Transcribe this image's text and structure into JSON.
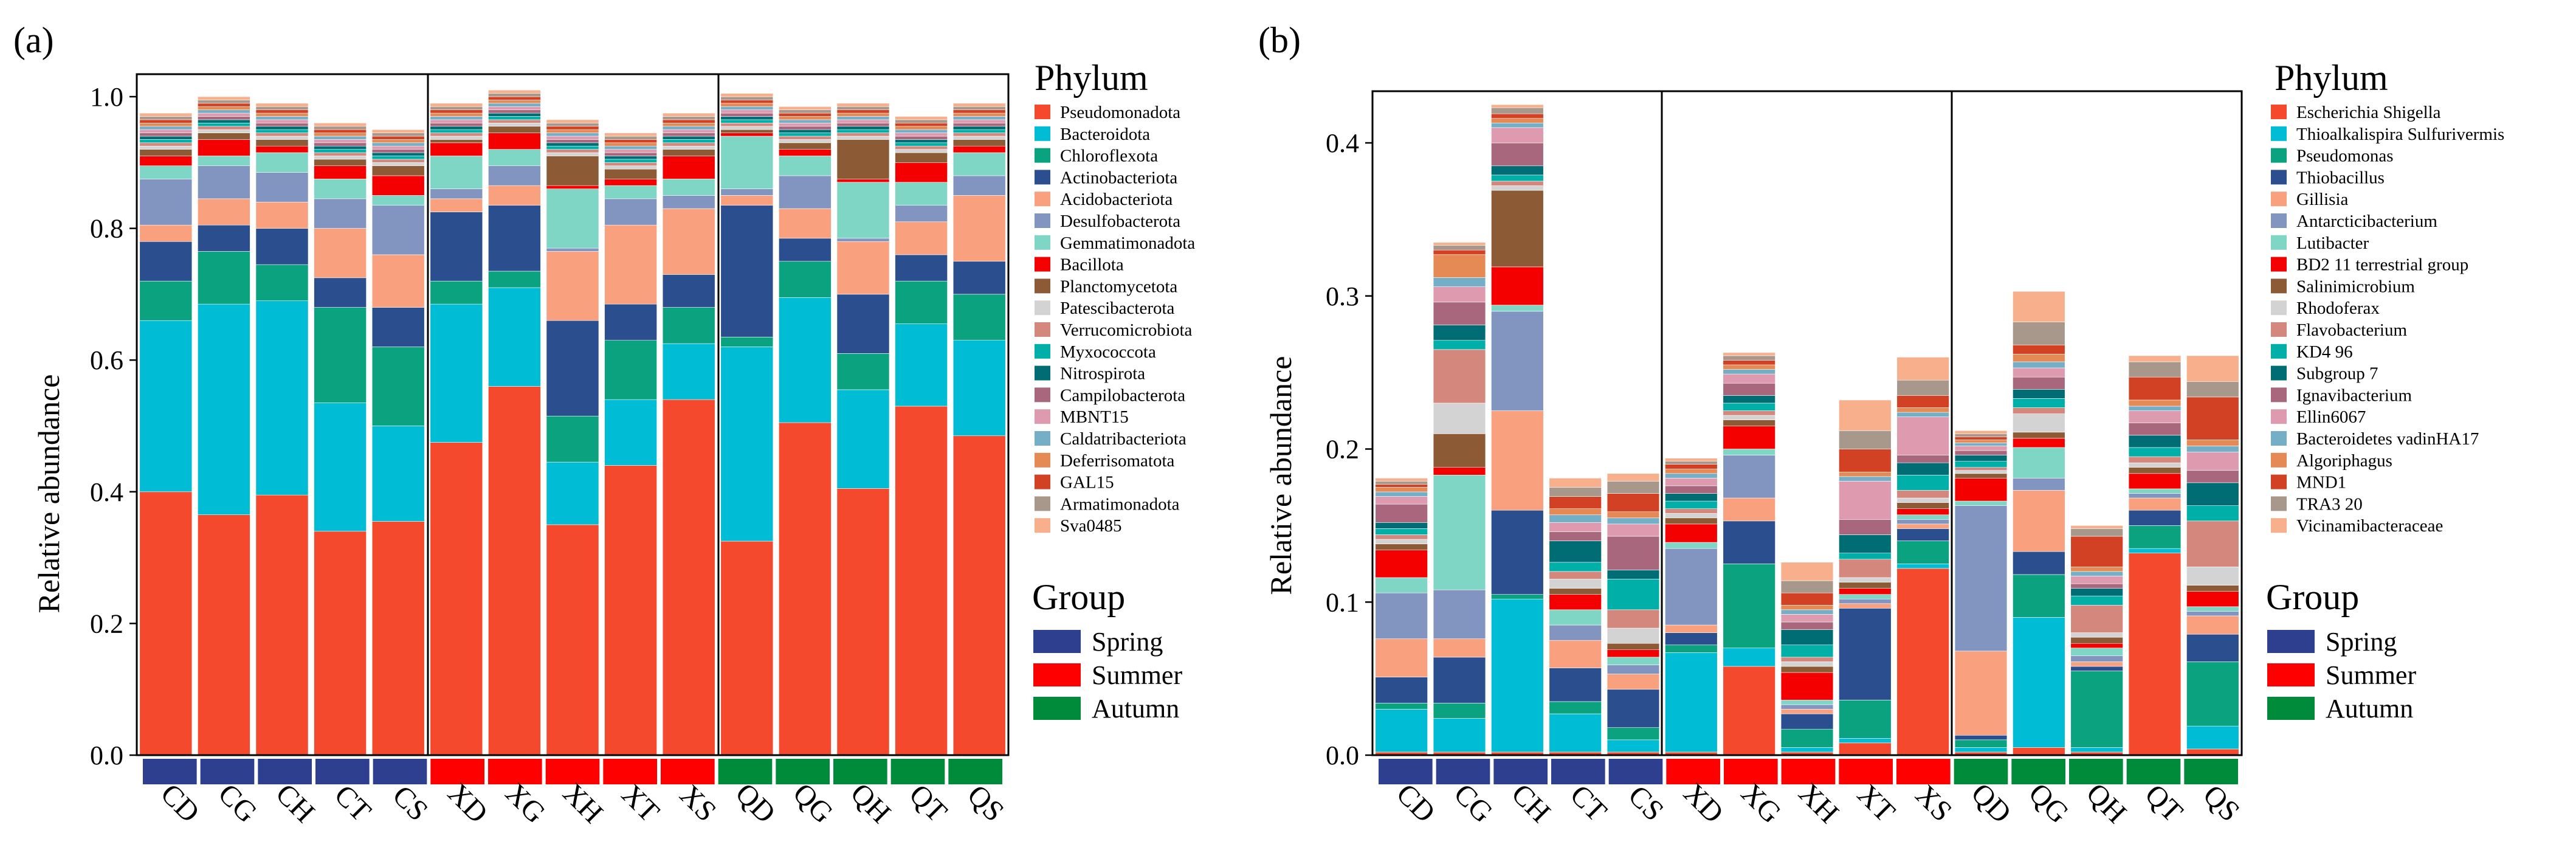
{
  "group_colors": {
    "Spring": "#2E3F8F",
    "Summer": "#FF0000",
    "Autumn": "#008B3A"
  },
  "group_legend": {
    "title": "Group",
    "items": [
      "Spring",
      "Summer",
      "Autumn"
    ]
  },
  "chart_data": [
    {
      "panel_label": "(a)",
      "type": "bar",
      "stacked": true,
      "title": "",
      "xlabel": "",
      "ylabel": "Relative abundance",
      "ylim": [
        0,
        1.0
      ],
      "yticks": [
        0.0,
        0.2,
        0.4,
        0.6,
        0.8,
        1.0
      ],
      "ytick_labels": [
        "0.0",
        "0.2",
        "0.4",
        "0.6",
        "0.8",
        "1.0"
      ],
      "categories": [
        "CD",
        "CG",
        "CH",
        "CT",
        "CS",
        "XD",
        "XG",
        "XH",
        "XT",
        "XS",
        "QD",
        "QG",
        "QH",
        "QT",
        "QS"
      ],
      "category_groups": [
        "Spring",
        "Spring",
        "Spring",
        "Spring",
        "Spring",
        "Summer",
        "Summer",
        "Summer",
        "Summer",
        "Summer",
        "Autumn",
        "Autumn",
        "Autumn",
        "Autumn",
        "Autumn"
      ],
      "legend_title": "Phylum",
      "series": [
        {
          "name": "Pseudomonadota",
          "color": "#F4492C",
          "values": [
            0.4,
            0.365,
            0.395,
            0.34,
            0.355,
            0.475,
            0.56,
            0.35,
            0.44,
            0.54,
            0.325,
            0.505,
            0.405,
            0.53,
            0.485
          ]
        },
        {
          "name": "Bacteroidota",
          "color": "#00BCD4",
          "values": [
            0.26,
            0.32,
            0.295,
            0.195,
            0.145,
            0.21,
            0.15,
            0.095,
            0.1,
            0.085,
            0.295,
            0.19,
            0.15,
            0.125,
            0.145
          ]
        },
        {
          "name": "Chloroflexota",
          "color": "#0BA37F",
          "values": [
            0.06,
            0.08,
            0.055,
            0.145,
            0.12,
            0.035,
            0.025,
            0.07,
            0.09,
            0.055,
            0.015,
            0.055,
            0.055,
            0.065,
            0.07
          ]
        },
        {
          "name": "Actinobacteriota",
          "color": "#2B4F8E",
          "values": [
            0.06,
            0.04,
            0.055,
            0.045,
            0.06,
            0.105,
            0.1,
            0.145,
            0.055,
            0.05,
            0.2,
            0.035,
            0.09,
            0.04,
            0.05
          ]
        },
        {
          "name": "Acidobacteriota",
          "color": "#F9A07F",
          "values": [
            0.025,
            0.04,
            0.04,
            0.075,
            0.08,
            0.02,
            0.03,
            0.105,
            0.12,
            0.1,
            0.015,
            0.045,
            0.08,
            0.05,
            0.1
          ]
        },
        {
          "name": "Desulfobacterota",
          "color": "#8295C1",
          "values": [
            0.07,
            0.05,
            0.045,
            0.045,
            0.075,
            0.015,
            0.03,
            0.005,
            0.04,
            0.02,
            0.01,
            0.05,
            0.005,
            0.025,
            0.03
          ]
        },
        {
          "name": "Gemmatimonadota",
          "color": "#7FD6C4",
          "values": [
            0.02,
            0.015,
            0.03,
            0.03,
            0.015,
            0.05,
            0.025,
            0.09,
            0.02,
            0.025,
            0.08,
            0.03,
            0.085,
            0.035,
            0.035
          ]
        },
        {
          "name": "Bacillota",
          "color": "#F40000",
          "values": [
            0.015,
            0.025,
            0.01,
            0.02,
            0.03,
            0.02,
            0.025,
            0.005,
            0.01,
            0.035,
            0.005,
            0.01,
            0.005,
            0.03,
            0.01
          ]
        },
        {
          "name": "Planctomycetota",
          "color": "#8C5A35",
          "values": [
            0.01,
            0.01,
            0.01,
            0.01,
            0.015,
            0.005,
            0.01,
            0.045,
            0.015,
            0.01,
            0.005,
            0.01,
            0.06,
            0.015,
            0.01
          ]
        },
        {
          "name": "Patescibacterota",
          "color": "#D3D3D3",
          "values": [
            0.005,
            0.005,
            0.005,
            0.005,
            0.005,
            0.005,
            0.005,
            0.005,
            0.005,
            0.005,
            0.005,
            0.005,
            0.005,
            0.005,
            0.005
          ]
        },
        {
          "name": "Verrucomicrobiota",
          "color": "#D4877C",
          "values": [
            0.005,
            0.005,
            0.005,
            0.005,
            0.005,
            0.005,
            0.005,
            0.005,
            0.005,
            0.005,
            0.005,
            0.005,
            0.005,
            0.005,
            0.005
          ]
        },
        {
          "name": "Myxococcota",
          "color": "#00AFA8",
          "values": [
            0.005,
            0.005,
            0.005,
            0.005,
            0.005,
            0.005,
            0.005,
            0.005,
            0.005,
            0.005,
            0.005,
            0.005,
            0.005,
            0.005,
            0.005
          ]
        },
        {
          "name": "Nitrospirota",
          "color": "#006D74",
          "values": [
            0.005,
            0.005,
            0.005,
            0.005,
            0.005,
            0.005,
            0.005,
            0.005,
            0.005,
            0.005,
            0.005,
            0.005,
            0.005,
            0.005,
            0.005
          ]
        },
        {
          "name": "Campilobacterota",
          "color": "#A8677D",
          "values": [
            0.005,
            0.005,
            0.005,
            0.005,
            0.005,
            0.005,
            0.005,
            0.005,
            0.005,
            0.005,
            0.005,
            0.005,
            0.005,
            0.005,
            0.005
          ]
        },
        {
          "name": "MBNT15",
          "color": "#DE9AAE",
          "values": [
            0.005,
            0.005,
            0.005,
            0.005,
            0.005,
            0.005,
            0.005,
            0.005,
            0.005,
            0.005,
            0.005,
            0.005,
            0.005,
            0.005,
            0.005
          ]
        },
        {
          "name": "Caldatribacteriota",
          "color": "#75AFC7",
          "values": [
            0.005,
            0.005,
            0.005,
            0.005,
            0.005,
            0.005,
            0.005,
            0.005,
            0.005,
            0.005,
            0.005,
            0.005,
            0.005,
            0.005,
            0.005
          ]
        },
        {
          "name": "Deferrisomatota",
          "color": "#E58A55",
          "values": [
            0.005,
            0.005,
            0.005,
            0.005,
            0.005,
            0.005,
            0.005,
            0.005,
            0.005,
            0.005,
            0.005,
            0.005,
            0.005,
            0.005,
            0.005
          ]
        },
        {
          "name": "GAL15",
          "color": "#D34124",
          "values": [
            0.005,
            0.005,
            0.005,
            0.005,
            0.005,
            0.005,
            0.005,
            0.005,
            0.005,
            0.005,
            0.005,
            0.005,
            0.005,
            0.005,
            0.005
          ]
        },
        {
          "name": "Armatimonadota",
          "color": "#A8988C",
          "values": [
            0.005,
            0.005,
            0.005,
            0.005,
            0.005,
            0.005,
            0.005,
            0.005,
            0.005,
            0.005,
            0.005,
            0.005,
            0.005,
            0.005,
            0.005
          ]
        },
        {
          "name": "Sva0485",
          "color": "#F8AF8C",
          "values": [
            0.005,
            0.005,
            0.005,
            0.005,
            0.005,
            0.005,
            0.005,
            0.005,
            0.005,
            0.005,
            0.005,
            0.005,
            0.005,
            0.005,
            0.005
          ]
        }
      ]
    },
    {
      "panel_label": "(b)",
      "type": "bar",
      "stacked": true,
      "title": "",
      "xlabel": "",
      "ylabel": "Relative abundance",
      "ylim": [
        0,
        0.43
      ],
      "yticks": [
        0.0,
        0.1,
        0.2,
        0.3,
        0.4
      ],
      "ytick_labels": [
        "0.0",
        "0.1",
        "0.2",
        "0.3",
        "0.4"
      ],
      "categories": [
        "CD",
        "CG",
        "CH",
        "CT",
        "CS",
        "XD",
        "XG",
        "XH",
        "XT",
        "XS",
        "QD",
        "QG",
        "QH",
        "QT",
        "QS"
      ],
      "category_groups": [
        "Spring",
        "Spring",
        "Spring",
        "Spring",
        "Spring",
        "Summer",
        "Summer",
        "Summer",
        "Summer",
        "Summer",
        "Autumn",
        "Autumn",
        "Autumn",
        "Autumn",
        "Autumn"
      ],
      "legend_title": "Phylum",
      "series": [
        {
          "name": "Escherichia Shigella",
          "color": "#F4492C",
          "values": [
            0.002,
            0.002,
            0.002,
            0.002,
            0.002,
            0.002,
            0.058,
            0.002,
            0.008,
            0.122,
            0.002,
            0.005,
            0.002,
            0.132,
            0.004
          ]
        },
        {
          "name": "Thioalkalispira Sulfurivermis",
          "color": "#00BCD4",
          "values": [
            0.028,
            0.022,
            0.1,
            0.025,
            0.008,
            0.065,
            0.012,
            0.003,
            0.003,
            0.003,
            0.003,
            0.085,
            0.003,
            0.003,
            0.015
          ]
        },
        {
          "name": "Pseudomonas",
          "color": "#0BA37F",
          "values": [
            0.004,
            0.01,
            0.003,
            0.008,
            0.008,
            0.005,
            0.055,
            0.012,
            0.025,
            0.015,
            0.005,
            0.028,
            0.05,
            0.015,
            0.042
          ]
        },
        {
          "name": "Thiobacillus",
          "color": "#2B4F8E",
          "values": [
            0.017,
            0.03,
            0.055,
            0.022,
            0.025,
            0.008,
            0.028,
            0.01,
            0.06,
            0.008,
            0.003,
            0.015,
            0.003,
            0.01,
            0.018
          ]
        },
        {
          "name": "Gillisia",
          "color": "#F9A07F",
          "values": [
            0.025,
            0.012,
            0.065,
            0.018,
            0.01,
            0.005,
            0.015,
            0.003,
            0.003,
            0.003,
            0.055,
            0.04,
            0.003,
            0.008,
            0.012
          ]
        },
        {
          "name": "Antarcticibacterium",
          "color": "#8295C1",
          "values": [
            0.03,
            0.032,
            0.065,
            0.01,
            0.006,
            0.05,
            0.028,
            0.003,
            0.003,
            0.003,
            0.095,
            0.008,
            0.004,
            0.003,
            0.003
          ]
        },
        {
          "name": "Lutibacter",
          "color": "#7FD6C4",
          "values": [
            0.01,
            0.075,
            0.004,
            0.01,
            0.005,
            0.004,
            0.004,
            0.003,
            0.003,
            0.003,
            0.003,
            0.02,
            0.005,
            0.003,
            0.003
          ]
        },
        {
          "name": "BD2 11 terrestrial group",
          "color": "#F40000",
          "values": [
            0.018,
            0.005,
            0.025,
            0.01,
            0.005,
            0.012,
            0.015,
            0.018,
            0.004,
            0.004,
            0.015,
            0.006,
            0.003,
            0.01,
            0.01
          ]
        },
        {
          "name": "Salinimicrobium",
          "color": "#8C5A35",
          "values": [
            0.004,
            0.022,
            0.05,
            0.004,
            0.004,
            0.004,
            0.004,
            0.004,
            0.004,
            0.004,
            0.003,
            0.004,
            0.004,
            0.004,
            0.004
          ]
        },
        {
          "name": "Rhodoferax",
          "color": "#D3D3D3",
          "values": [
            0.003,
            0.02,
            0.003,
            0.006,
            0.01,
            0.003,
            0.003,
            0.003,
            0.003,
            0.003,
            0.002,
            0.012,
            0.003,
            0.003,
            0.012
          ]
        },
        {
          "name": "Flavobacterium",
          "color": "#D4877C",
          "values": [
            0.003,
            0.035,
            0.003,
            0.005,
            0.012,
            0.003,
            0.003,
            0.003,
            0.012,
            0.005,
            0.002,
            0.004,
            0.018,
            0.004,
            0.03
          ]
        },
        {
          "name": "KD4 96",
          "color": "#00AFA8",
          "values": [
            0.004,
            0.006,
            0.004,
            0.006,
            0.02,
            0.005,
            0.005,
            0.008,
            0.004,
            0.01,
            0.004,
            0.006,
            0.006,
            0.006,
            0.01
          ]
        },
        {
          "name": "Subgroup 7",
          "color": "#006D74",
          "values": [
            0.004,
            0.01,
            0.006,
            0.014,
            0.006,
            0.005,
            0.005,
            0.01,
            0.012,
            0.008,
            0.004,
            0.006,
            0.005,
            0.008,
            0.015
          ]
        },
        {
          "name": "Ignavibacterium",
          "color": "#A8677D",
          "values": [
            0.012,
            0.015,
            0.015,
            0.006,
            0.022,
            0.005,
            0.008,
            0.005,
            0.01,
            0.005,
            0.003,
            0.008,
            0.003,
            0.008,
            0.008
          ]
        },
        {
          "name": "Ellin6067",
          "color": "#DE9AAE",
          "values": [
            0.005,
            0.01,
            0.01,
            0.006,
            0.008,
            0.005,
            0.006,
            0.005,
            0.025,
            0.025,
            0.003,
            0.006,
            0.005,
            0.008,
            0.012
          ]
        },
        {
          "name": "Bacteroidetes vadinHA17",
          "color": "#75AFC7",
          "values": [
            0.003,
            0.006,
            0.003,
            0.005,
            0.004,
            0.003,
            0.003,
            0.003,
            0.003,
            0.003,
            0.002,
            0.004,
            0.003,
            0.003,
            0.004
          ]
        },
        {
          "name": "Algoriphagus",
          "color": "#E58A55",
          "values": [
            0.003,
            0.015,
            0.003,
            0.004,
            0.004,
            0.003,
            0.003,
            0.003,
            0.003,
            0.003,
            0.002,
            0.005,
            0.003,
            0.004,
            0.004
          ]
        },
        {
          "name": "MND1",
          "color": "#D34124",
          "values": [
            0.002,
            0.003,
            0.003,
            0.008,
            0.012,
            0.003,
            0.003,
            0.008,
            0.015,
            0.008,
            0.002,
            0.006,
            0.02,
            0.015,
            0.028
          ]
        },
        {
          "name": "TRA3 20",
          "color": "#A8988C",
          "values": [
            0.002,
            0.003,
            0.004,
            0.006,
            0.008,
            0.002,
            0.003,
            0.008,
            0.012,
            0.01,
            0.002,
            0.015,
            0.005,
            0.01,
            0.01
          ]
        },
        {
          "name": "Vicinamibacteraceae",
          "color": "#F8AF8C",
          "values": [
            0.002,
            0.002,
            0.002,
            0.006,
            0.005,
            0.002,
            0.002,
            0.012,
            0.02,
            0.015,
            0.002,
            0.02,
            0.002,
            0.004,
            0.017
          ]
        }
      ]
    }
  ]
}
